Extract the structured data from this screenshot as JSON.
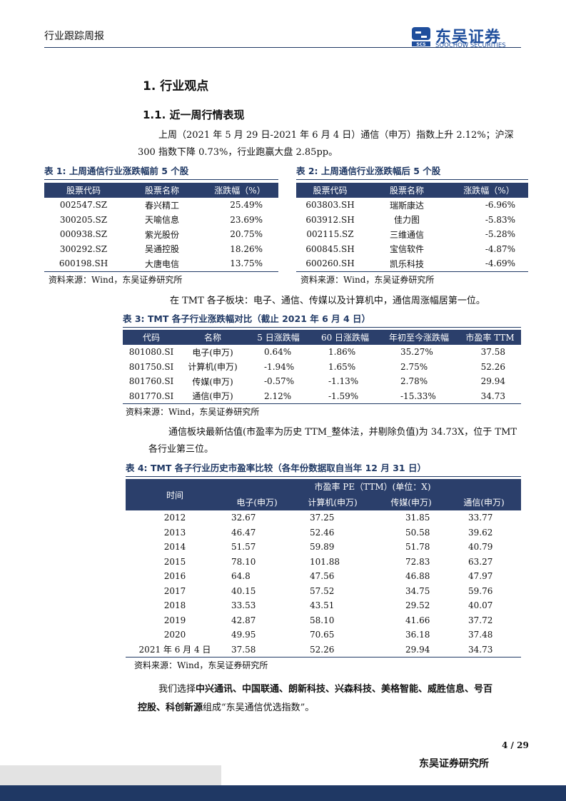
{
  "header": {
    "title": "行业跟踪周报",
    "logo_cn": "东吴证券",
    "logo_en": "SOOCHOW SECURITIES",
    "logo_mark_text": "SCS"
  },
  "section1": "1.  行业观点",
  "section11": "1.1.   近一周行情表现",
  "para1_line1": "上周（2021 年 5 月 29 日-2021 年 6 月 4 日）通信（申万）指数上升 2.12%；沪深",
  "para1_line2": "300 指数下降 0.73%，行业跑赢大盘 2.85pp。",
  "table1": {
    "caption": "表 1:  上周通信行业涨跌幅前 5 个股",
    "headers": [
      "股票代码",
      "股票名称",
      "涨跌幅（%）"
    ],
    "rows": [
      [
        "002547.SZ",
        "春兴精工",
        "25.49%"
      ],
      [
        "300205.SZ",
        "天喻信息",
        "23.69%"
      ],
      [
        "000938.SZ",
        "紫光股份",
        "20.75%"
      ],
      [
        "300292.SZ",
        "吴通控股",
        "18.26%"
      ],
      [
        "600198.SH",
        "大唐电信",
        "13.75%"
      ]
    ],
    "source": "资料来源：Wind，东吴证券研究所"
  },
  "table2": {
    "caption": "表 2:  上周通信行业涨跌幅后 5 个股",
    "headers": [
      "股票代码",
      "股票名称",
      "涨跌幅（%）"
    ],
    "rows": [
      [
        "603803.SH",
        "瑞斯康达",
        "-6.96%"
      ],
      [
        "603912.SH",
        "佳力图",
        "-5.83%"
      ],
      [
        "002115.SZ",
        "三维通信",
        "-5.28%"
      ],
      [
        "600845.SH",
        "宝信软件",
        "-4.87%"
      ],
      [
        "600260.SH",
        "凯乐科技",
        "-4.69%"
      ]
    ],
    "source": "资料来源：Wind，东吴证券研究所"
  },
  "para2": "在 TMT 各子板块：电子、通信、传媒以及计算机中，通信周涨幅居第一位。",
  "table3": {
    "caption": "表 3:  TMT 各子行业涨跌幅对比（截止 2021 年 6 月 4 日）",
    "headers": [
      "代码",
      "名称",
      "5 日涨跌幅",
      "60 日涨跌幅",
      "年初至今涨跌幅",
      "市盈率 TTM"
    ],
    "rows": [
      [
        "801080.SI",
        "电子(申万)",
        "0.64%",
        "1.86%",
        "35.27%",
        "37.58"
      ],
      [
        "801750.SI",
        "计算机(申万)",
        "-1.94%",
        "1.65%",
        "2.75%",
        "52.26"
      ],
      [
        "801760.SI",
        "传媒(申万)",
        "-0.57%",
        "-1.13%",
        "2.78%",
        "29.94"
      ],
      [
        "801770.SI",
        "通信(申万)",
        "2.12%",
        "-1.59%",
        "-15.33%",
        "34.73"
      ]
    ],
    "source": "资料来源：Wind，东吴证券研究所"
  },
  "para3_line1": "通信板块最新估值(市盈率为历史 TTM_整体法，并剔除负值)为 34.73X，位于 TMT",
  "para3_line2": "各行业第三位。",
  "table4": {
    "caption": "表 4:  TMT 各子行业历史市盈率比较（各年份数据取自当年 12 月 31 日）",
    "header_time": "时间",
    "header_group": "市盈率 PE（TTM）(单位：X)",
    "headers": [
      "电子(申万)",
      "计算机(申万)",
      "传媒(申万)",
      "通信(申万)"
    ],
    "rows": [
      [
        "2012",
        "32.67",
        "37.25",
        "31.85",
        "33.77"
      ],
      [
        "2013",
        "46.47",
        "52.46",
        "50.58",
        "39.62"
      ],
      [
        "2014",
        "51.57",
        "59.89",
        "51.78",
        "40.79"
      ],
      [
        "2015",
        "78.10",
        "101.88",
        "72.83",
        "63.27"
      ],
      [
        "2016",
        "64.8",
        "47.56",
        "46.88",
        "47.97"
      ],
      [
        "2017",
        "40.15",
        "57.52",
        "34.75",
        "59.76"
      ],
      [
        "2018",
        "33.53",
        "43.51",
        "29.52",
        "40.07"
      ],
      [
        "2019",
        "42.87",
        "58.10",
        "41.66",
        "37.72"
      ],
      [
        "2020",
        "49.95",
        "70.65",
        "36.18",
        "37.48"
      ],
      [
        "2021 年 6 月 4 日",
        "37.58",
        "52.26",
        "29.94",
        "34.73"
      ]
    ],
    "source": "资料来源：Wind，东吴证券研究所"
  },
  "para4": {
    "prefix": "我们选择",
    "bold1": "中兴通讯、中国联通、朗新科技、兴森科技、美格智能、威胜信息、号百",
    "bold2": "控股、科创新源",
    "suffix": "组成“东吴通信优选指数”。"
  },
  "footer": {
    "page": "4 / 29",
    "org": "东吴证券研究所"
  }
}
